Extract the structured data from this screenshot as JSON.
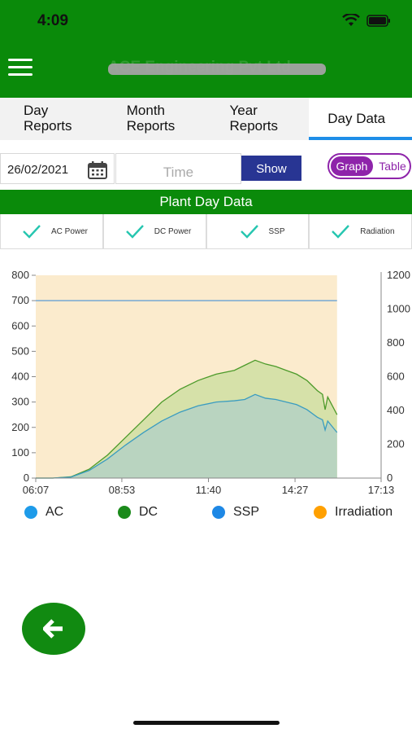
{
  "status_bar": {
    "time": "4:09"
  },
  "app_bar": {
    "title": "ACE Engineering Pvt Ltd"
  },
  "tabs": [
    {
      "label": "Day\nReports"
    },
    {
      "label": "Month\nReports"
    },
    {
      "label": "Year\nReports"
    },
    {
      "label": "Day Data",
      "active": true
    }
  ],
  "controls": {
    "date_value": "26/02/2021",
    "time_placeholder": "Time",
    "show_label": "Show",
    "toggle_graph": "Graph",
    "toggle_table": "Table"
  },
  "section_header": "Plant Day Data",
  "filters": [
    {
      "label": "AC Power",
      "checked": true
    },
    {
      "label": "DC Power",
      "checked": true
    },
    {
      "label": "SSP",
      "checked": true
    },
    {
      "label": "Radiation",
      "checked": true
    }
  ],
  "legend": [
    {
      "label": "AC",
      "color": "#1e9be9"
    },
    {
      "label": "DC",
      "color": "#1b8a1b"
    },
    {
      "label": "SSP",
      "color": "#1e88e5"
    },
    {
      "label": "Irradiation",
      "color": "#ffa000"
    }
  ],
  "colors": {
    "brand_green": "#0a8a0a",
    "accent_blue": "#1e8ee8",
    "show_button": "#283593",
    "toggle_purple": "#8e24aa",
    "irradiation_fill": "#fbebcd",
    "dc_fill": "#d6e1a9",
    "ac_fill": "#b9d4c0"
  },
  "chart_data": {
    "type": "area",
    "x_ticks": [
      "06:07",
      "08:53",
      "11:40",
      "14:27",
      "17:13"
    ],
    "y_left": {
      "ticks": [
        0,
        100,
        200,
        300,
        400,
        500,
        600,
        700,
        800
      ],
      "range": [
        0,
        800
      ]
    },
    "y_right": {
      "ticks": [
        0,
        200,
        400,
        600,
        800,
        1000,
        1200
      ],
      "range": [
        0,
        1200
      ]
    },
    "x_range": [
      "06:07",
      "17:13"
    ],
    "ssp_constant": 700,
    "irradiation_end": "15:48",
    "series": [
      {
        "name": "DC",
        "x": [
          "06:07",
          "06:40",
          "07:15",
          "07:50",
          "08:25",
          "09:00",
          "09:35",
          "10:10",
          "10:45",
          "11:20",
          "11:55",
          "12:30",
          "12:50",
          "13:10",
          "13:30",
          "13:50",
          "14:10",
          "14:30",
          "14:50",
          "15:10",
          "15:20",
          "15:25",
          "15:30",
          "15:48"
        ],
        "values": [
          0,
          0,
          5,
          35,
          90,
          160,
          230,
          300,
          350,
          385,
          410,
          425,
          445,
          465,
          450,
          440,
          425,
          410,
          385,
          345,
          330,
          270,
          320,
          250
        ]
      },
      {
        "name": "AC",
        "x": [
          "06:07",
          "06:40",
          "07:15",
          "07:50",
          "08:25",
          "09:00",
          "09:35",
          "10:10",
          "10:45",
          "11:20",
          "11:55",
          "12:30",
          "12:50",
          "13:10",
          "13:30",
          "13:50",
          "14:10",
          "14:30",
          "14:50",
          "15:10",
          "15:20",
          "15:25",
          "15:30",
          "15:48"
        ],
        "values": [
          0,
          0,
          4,
          30,
          75,
          130,
          180,
          225,
          260,
          285,
          300,
          305,
          310,
          330,
          315,
          310,
          300,
          290,
          270,
          240,
          230,
          190,
          225,
          180
        ]
      },
      {
        "name": "SSP",
        "x": [
          "06:07",
          "15:48"
        ],
        "values": [
          700,
          700
        ]
      }
    ]
  }
}
